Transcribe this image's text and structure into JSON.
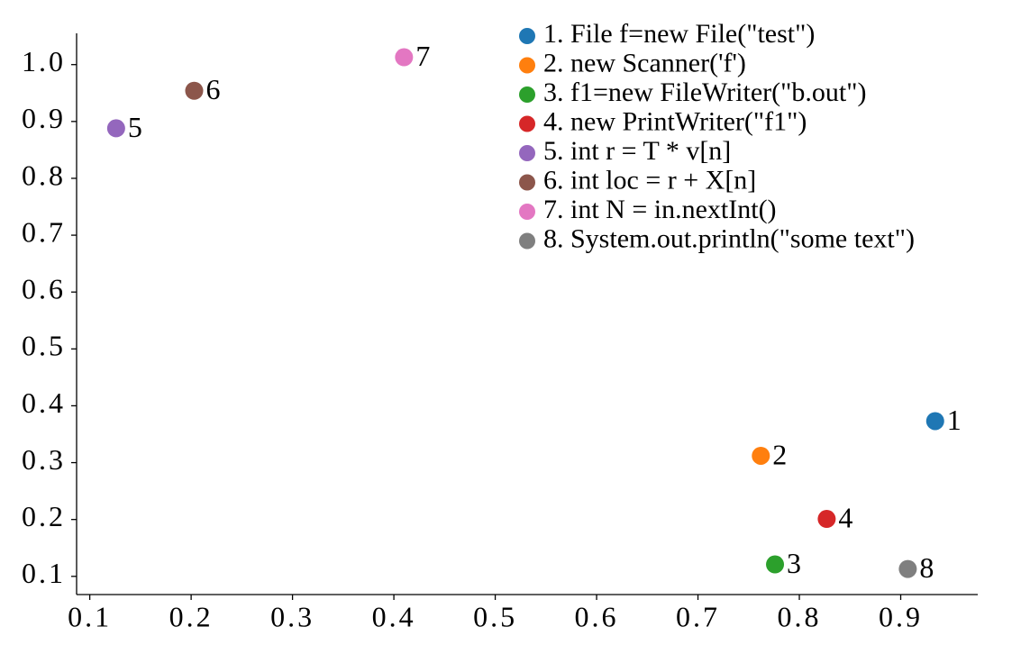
{
  "chart_data": {
    "type": "scatter",
    "xlim": [
      0.087,
      0.976
    ],
    "ylim": [
      0.068,
      1.055
    ],
    "xticks": [
      0.1,
      0.2,
      0.3,
      0.4,
      0.5,
      0.6,
      0.7,
      0.8,
      0.9
    ],
    "yticks": [
      0.1,
      0.2,
      0.3,
      0.4,
      0.5,
      0.6,
      0.7,
      0.8,
      0.9,
      {
        "value": 1,
        "label": "1.0"
      }
    ],
    "legend": "upper right",
    "series": [
      {
        "name": "1. File f=new File(\"test\")",
        "color": "#1f77b4",
        "x": [
          0.934
        ],
        "values": [
          0.373
        ],
        "value_labels": [
          "1"
        ]
      },
      {
        "name": "2. new Scanner('f')",
        "color": "#ff7f0e",
        "x": [
          0.762
        ],
        "values": [
          0.312
        ],
        "value_labels": [
          "2"
        ]
      },
      {
        "name": "3. f1=new FileWriter(\"b.out\")",
        "color": "#2ca02c",
        "x": [
          0.776
        ],
        "values": [
          0.121
        ],
        "value_labels": [
          "3"
        ]
      },
      {
        "name": "4. new PrintWriter(\"f1\")",
        "color": "#d62728",
        "x": [
          0.827
        ],
        "values": [
          0.201
        ],
        "value_labels": [
          "4"
        ]
      },
      {
        "name": "5. int r = T * v[n]",
        "color": "#9467bd",
        "x": [
          0.126
        ],
        "values": [
          0.888
        ],
        "value_labels": [
          "5"
        ]
      },
      {
        "name": "6. int loc = r + X[n]",
        "color": "#8c564b",
        "x": [
          0.203
        ],
        "values": [
          0.954
        ],
        "value_labels": [
          "6"
        ]
      },
      {
        "name": "7. int N = in.nextInt()",
        "color": "#e377c2",
        "x": [
          0.41
        ],
        "values": [
          1.013
        ],
        "value_labels": [
          "7"
        ]
      },
      {
        "name": "8. System.out.println(\"some text\")",
        "color": "#7f7f7f",
        "x": [
          0.907
        ],
        "values": [
          0.113
        ],
        "value_labels": [
          "8"
        ]
      }
    ]
  }
}
